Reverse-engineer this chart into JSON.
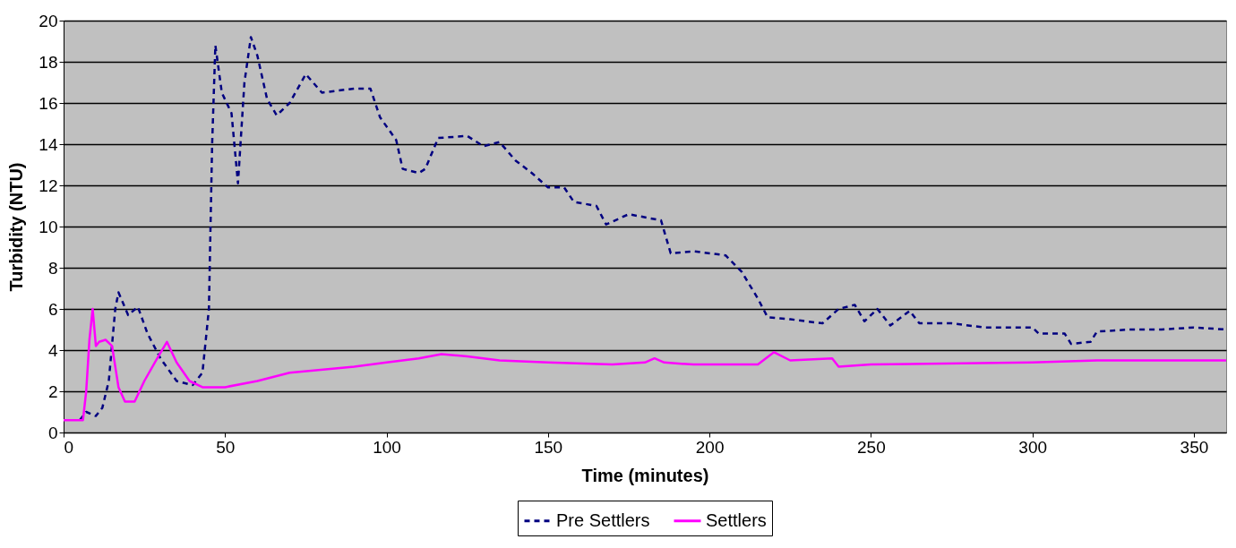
{
  "chart_data": {
    "type": "line",
    "xlabel": "Time (minutes)",
    "ylabel": "Turbidity (NTU)",
    "xlim": [
      0,
      360
    ],
    "xticks": [
      0,
      50,
      100,
      150,
      200,
      250,
      300,
      350
    ],
    "ylim": [
      0,
      20
    ],
    "yticks": [
      0,
      2,
      4,
      6,
      8,
      10,
      12,
      14,
      16,
      18,
      20
    ],
    "grid": "y",
    "legend": "bottom",
    "marker": "none",
    "series": [
      {
        "name": "Pre Settlers",
        "color": "#000080",
        "line_style": "dashed",
        "x": [
          5,
          7,
          10,
          12,
          14,
          16,
          17,
          20,
          23,
          26,
          30,
          35,
          40,
          43,
          45,
          46,
          47,
          49,
          52,
          54,
          56,
          58,
          60,
          63,
          66,
          70,
          75,
          80,
          90,
          95,
          98,
          103,
          105,
          110,
          112,
          116,
          125,
          130,
          135,
          140,
          145,
          150,
          155,
          158,
          165,
          168,
          175,
          185,
          188,
          195,
          205,
          210,
          215,
          218,
          225,
          235,
          240,
          245,
          248,
          252,
          256,
          262,
          265,
          275,
          285,
          300,
          302,
          310,
          312,
          318,
          320,
          330,
          340,
          350,
          360
        ],
        "values": [
          0.6,
          1.0,
          0.8,
          1.2,
          2.5,
          6.0,
          6.8,
          5.7,
          6.1,
          4.8,
          3.6,
          2.5,
          2.3,
          2.9,
          6,
          14,
          18.8,
          16.5,
          15.5,
          12.1,
          17,
          19.2,
          18.3,
          16.2,
          15.4,
          16,
          17.4,
          16.5,
          16.7,
          16.7,
          15.3,
          14.2,
          12.8,
          12.6,
          12.8,
          14.3,
          14.4,
          13.9,
          14.1,
          13.2,
          12.6,
          11.9,
          11.9,
          11.2,
          11.0,
          10.1,
          10.6,
          10.3,
          8.7,
          8.8,
          8.6,
          7.8,
          6.5,
          5.6,
          5.5,
          5.3,
          6.0,
          6.2,
          5.4,
          6.0,
          5.2,
          5.9,
          5.3,
          5.3,
          5.1,
          5.1,
          4.8,
          4.8,
          4.3,
          4.4,
          4.9,
          5.0,
          5.0,
          5.1,
          5.0
        ]
      },
      {
        "name": "Settlers",
        "color": "#ff00ff",
        "line_style": "solid",
        "x": [
          0,
          6,
          7,
          8,
          9,
          10,
          11,
          13,
          15,
          17,
          19,
          22,
          25,
          29,
          32,
          35,
          39,
          43,
          50,
          60,
          70,
          90,
          100,
          110,
          117,
          125,
          135,
          150,
          170,
          180,
          183,
          186,
          195,
          215,
          220,
          225,
          238,
          240,
          250,
          300,
          320,
          360
        ],
        "values": [
          0.6,
          0.6,
          2,
          4.5,
          6.0,
          4.2,
          4.4,
          4.5,
          4.2,
          2.2,
          1.5,
          1.5,
          2.5,
          3.6,
          4.4,
          3.4,
          2.5,
          2.2,
          2.2,
          2.5,
          2.9,
          3.2,
          3.4,
          3.6,
          3.8,
          3.7,
          3.5,
          3.4,
          3.3,
          3.4,
          3.6,
          3.4,
          3.3,
          3.3,
          3.9,
          3.5,
          3.6,
          3.2,
          3.3,
          3.4,
          3.5,
          3.5
        ]
      }
    ]
  }
}
